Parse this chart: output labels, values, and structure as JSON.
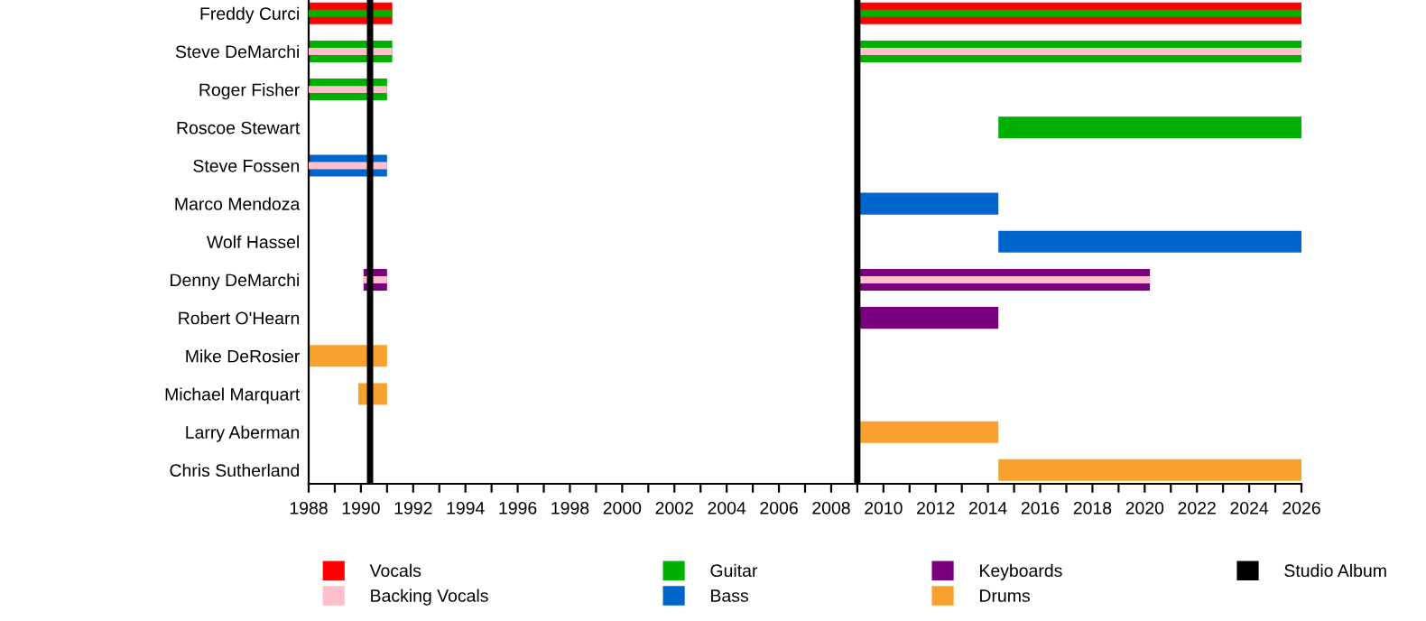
{
  "chart_data": {
    "type": "bar",
    "orientation": "horizontal",
    "categories": [
      "Freddy Curci",
      "Steve DeMarchi",
      "Roger Fisher",
      "Roscoe Stewart",
      "Steve Fossen",
      "Marco Mendoza",
      "Wolf Hassel",
      "Denny DeMarchi",
      "Robert O'Hearn",
      "Mike DeRosier",
      "Michael Marquart",
      "Larry Aberman",
      "Chris Sutherland"
    ],
    "series": [
      {
        "color": "#00b000",
        "base": [
          1988,
          null,
          null,
          null,
          null,
          null,
          null,
          null,
          null,
          null,
          null,
          null,
          null
        ],
        "values": [
          3.2,
          null,
          null,
          null,
          null,
          null,
          null,
          null,
          null,
          null,
          null,
          null,
          null
        ]
      },
      {
        "color": "#00b000",
        "base": [
          2008.9,
          null,
          null,
          null,
          null,
          null,
          null,
          null,
          null,
          null,
          null,
          null,
          null
        ],
        "values": [
          17.1,
          null,
          null,
          null,
          null,
          null,
          null,
          null,
          null,
          null,
          null,
          null,
          null
        ]
      },
      {
        "name": "Vocals",
        "color": "#ff0000",
        "base": [
          1988,
          null,
          null,
          null,
          null,
          null,
          null,
          null,
          null,
          null,
          null,
          null,
          null
        ],
        "values": [
          3.2,
          null,
          null,
          null,
          null,
          null,
          null,
          null,
          null,
          null,
          null,
          null,
          null
        ]
      },
      {
        "color": "#ff0000",
        "base": [
          2008.9,
          null,
          null,
          null,
          null,
          null,
          null,
          null,
          null,
          null,
          null,
          null,
          null
        ],
        "values": [
          17.1,
          null,
          null,
          null,
          null,
          null,
          null,
          null,
          null,
          null,
          null,
          null,
          null
        ]
      },
      {
        "name": "Backing Vocals",
        "color": "#ffc0cb",
        "base": [
          null,
          1988,
          1988,
          null,
          1988,
          null,
          null,
          1990.1,
          null,
          null,
          null,
          null,
          null
        ],
        "values": [
          null,
          3.2,
          3.0,
          null,
          3.0,
          null,
          null,
          0.9,
          null,
          null,
          null,
          null,
          null
        ]
      },
      {
        "color": "#ffc0cb",
        "base": [
          null,
          2008.9,
          null,
          null,
          null,
          null,
          null,
          2008.9,
          null,
          null,
          null,
          null,
          null
        ],
        "values": [
          null,
          17.1,
          null,
          null,
          null,
          null,
          null,
          11.3,
          null,
          null,
          null,
          null,
          null
        ]
      },
      {
        "name": "Guitar",
        "color": "#00b000",
        "base": [
          null,
          1988,
          1988,
          2014.4,
          null,
          null,
          null,
          null,
          null,
          null,
          null,
          null,
          null
        ],
        "values": [
          null,
          3.2,
          3.0,
          11.6,
          null,
          null,
          null,
          null,
          null,
          null,
          null,
          null,
          null
        ]
      },
      {
        "color": "#00b000",
        "base": [
          null,
          2008.9,
          null,
          null,
          null,
          null,
          null,
          null,
          null,
          null,
          null,
          null,
          null
        ],
        "values": [
          null,
          17.1,
          null,
          null,
          null,
          null,
          null,
          null,
          null,
          null,
          null,
          null,
          null
        ]
      },
      {
        "name": "Bass",
        "color": "#0066cc",
        "base": [
          null,
          null,
          null,
          null,
          1988,
          2008.9,
          2014.4,
          null,
          null,
          null,
          null,
          null,
          null
        ],
        "values": [
          null,
          null,
          null,
          null,
          3.0,
          5.5,
          11.6,
          null,
          null,
          null,
          null,
          null,
          null
        ]
      },
      {
        "name": "Keyboards",
        "color": "#7a0080",
        "base": [
          null,
          null,
          null,
          null,
          null,
          null,
          null,
          1990.1,
          2008.9,
          null,
          null,
          null,
          null
        ],
        "values": [
          null,
          null,
          null,
          null,
          null,
          null,
          null,
          0.9,
          5.5,
          null,
          null,
          null,
          null
        ]
      },
      {
        "color": "#7a0080",
        "base": [
          null,
          null,
          null,
          null,
          null,
          null,
          null,
          2008.9,
          null,
          null,
          null,
          null,
          null
        ],
        "values": [
          null,
          null,
          null,
          null,
          null,
          null,
          null,
          11.3,
          null,
          null,
          null,
          null,
          null
        ]
      },
      {
        "name": "Drums",
        "color": "#f9a12e",
        "base": [
          null,
          null,
          null,
          null,
          null,
          null,
          null,
          null,
          null,
          1988,
          1989.9,
          2008.9,
          2014.4
        ],
        "values": [
          null,
          null,
          null,
          null,
          null,
          null,
          null,
          null,
          null,
          3.0,
          1.1,
          5.5,
          11.6
        ]
      }
    ],
    "ref_lines": [
      {
        "axis": "x",
        "value": 1990.35,
        "label": "Studio Album",
        "color": "#000000"
      },
      {
        "axis": "x",
        "value": 2009.0,
        "color": "#000000"
      }
    ],
    "xlim": [
      1988,
      2026
    ],
    "xticks": [
      1988,
      {
        "value": 1989,
        "label": null
      },
      1990,
      {
        "value": 1991,
        "label": null
      },
      1992,
      {
        "value": 1993,
        "label": null
      },
      1994,
      {
        "value": 1995,
        "label": null
      },
      1996,
      {
        "value": 1997,
        "label": null
      },
      1998,
      {
        "value": 1999,
        "label": null
      },
      2000,
      {
        "value": 2001,
        "label": null
      },
      2002,
      {
        "value": 2003,
        "label": null
      },
      2004,
      {
        "value": 2005,
        "label": null
      },
      2006,
      {
        "value": 2007,
        "label": null
      },
      2008,
      {
        "value": 2009,
        "label": null
      },
      2010,
      {
        "value": 2011,
        "label": null
      },
      2012,
      {
        "value": 2013,
        "label": null
      },
      2014,
      {
        "value": 2015,
        "label": null
      },
      2016,
      {
        "value": 2017,
        "label": null
      },
      2018,
      {
        "value": 2019,
        "label": null
      },
      2020,
      {
        "value": 2021,
        "label": null
      },
      2022,
      {
        "value": 2023,
        "label": null
      },
      2024,
      {
        "value": 2025,
        "label": null
      },
      2026
    ],
    "grid": false,
    "legend": "bottom"
  }
}
